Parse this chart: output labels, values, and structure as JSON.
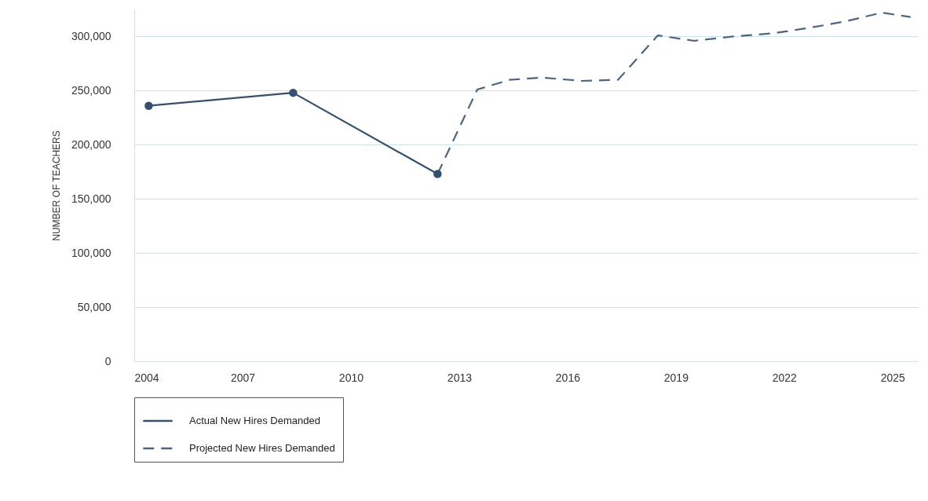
{
  "chart_data": {
    "type": "line",
    "ylabel": "NUMBER OF TEACHERS",
    "xlim": [
      2004,
      2025.7
    ],
    "xticks": [
      2004,
      2007,
      2010,
      2013,
      2016,
      2019,
      2022,
      2025
    ],
    "ylim": [
      0,
      325000
    ],
    "yticks": [
      0,
      {
        "value": 50000,
        "label": "50,000"
      },
      {
        "value": 100000,
        "label": "100,000"
      },
      {
        "value": 150000,
        "label": "150,000"
      },
      {
        "value": 200000,
        "label": "200,000"
      },
      {
        "value": 250000,
        "label": "250,000"
      },
      {
        "value": 300000,
        "label": "300,000"
      }
    ],
    "grid": "y",
    "legend": "bottom",
    "series": [
      {
        "name": "Actual New Hires Demanded",
        "color": "#34506f",
        "marker": "circle",
        "line_style": "solid",
        "x": [
          2004.4,
          2008.4,
          2012.4
        ],
        "values": [
          236000,
          248000,
          173000
        ]
      },
      {
        "name": "Projected New Hires Demanded",
        "color": "#4a6585",
        "marker": "none",
        "line_style": "dashed",
        "x": [
          2012.4,
          2013.5,
          2014.4,
          2015.3,
          2016.4,
          2017.4,
          2018.5,
          2019.5,
          2020.6,
          2021.7,
          2022.7,
          2023.7,
          2024.7,
          2025.5
        ],
        "values": [
          173000,
          251000,
          260000,
          262000,
          259000,
          260000,
          301000,
          296000,
          300000,
          303000,
          308000,
          314000,
          322000,
          318000
        ]
      }
    ]
  }
}
